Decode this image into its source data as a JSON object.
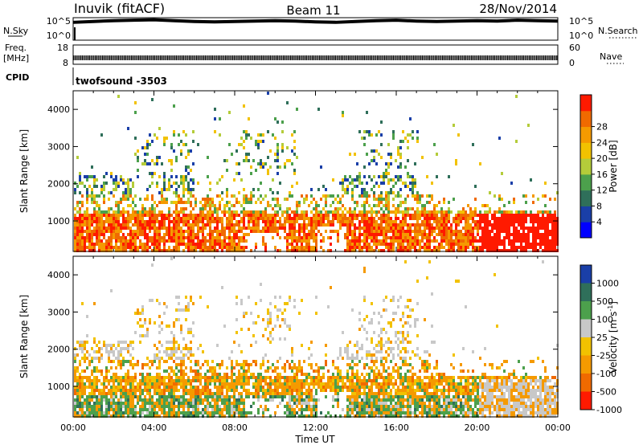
{
  "header": {
    "station": "Inuvik (fitACF)",
    "beam": "Beam 11",
    "date": "28/Nov/2014"
  },
  "chart_data": [
    {
      "type": "line",
      "panel": "noise",
      "left_labels": [
        "N.Sky"
      ],
      "right_labels": [
        "N.Search"
      ],
      "left_ticks": [
        "10^5",
        "10^0"
      ],
      "right_ticks": [
        "10^5",
        "10^0"
      ],
      "description_series": [
        {
          "name": "N.Sky",
          "x_hours": [
            0,
            1,
            2,
            3,
            4,
            5,
            6,
            7,
            8,
            9,
            10,
            11,
            12,
            13,
            14,
            15,
            16,
            17,
            18,
            19,
            20,
            21,
            22,
            23,
            24
          ],
          "values_log10": [
            4.2,
            4.4,
            4.6,
            4.7,
            4.8,
            4.6,
            4.4,
            4.3,
            4.4,
            4.5,
            4.6,
            4.5,
            4.3,
            4.2,
            4.4,
            4.6,
            4.7,
            4.5,
            4.4,
            4.5,
            4.6,
            4.5,
            4.7,
            4.6,
            4.5
          ]
        }
      ]
    },
    {
      "type": "line",
      "panel": "frequency",
      "left_labels": [
        "Freq.",
        "[MHz]"
      ],
      "right_labels": [
        "Nave"
      ],
      "left_ticks": [
        "18",
        "8"
      ],
      "right_ticks": [
        "60",
        "0"
      ],
      "note_value_mhz": 10.5
    },
    {
      "type": "text",
      "panel": "cpid",
      "label": "CPID",
      "value": "twofsound -3503"
    },
    {
      "type": "heatmap",
      "panel": "power",
      "ylabel": "Slant Range [km]",
      "yticks": [
        "1000",
        "2000",
        "3000",
        "4000"
      ],
      "ylim": [
        180,
        4500
      ],
      "colorbar": {
        "label": "Power [dB]",
        "ticks": [
          "4",
          "8",
          "12",
          "16",
          "20",
          "24",
          "28"
        ],
        "colors": [
          "#0000ff",
          "#1a3fa8",
          "#2f6f5a",
          "#4ca04c",
          "#b4cc3a",
          "#f2c200",
          "#f59a00",
          "#f06a00",
          "#ff1a00"
        ]
      }
    },
    {
      "type": "heatmap",
      "panel": "velocity",
      "ylabel": "Slant Range [km]",
      "yticks": [
        "1000",
        "2000",
        "3000",
        "4000"
      ],
      "ylim": [
        180,
        4500
      ],
      "colorbar": {
        "label": "Velocity [m s^-1]",
        "ticks": [
          "1000",
          "500",
          "100",
          "25",
          "-25",
          "-100",
          "-500",
          "-1000"
        ],
        "colors": [
          "#1a3fa8",
          "#2f6f5a",
          "#4ca04c",
          "#c8c8c8",
          "#f2c200",
          "#f59a00",
          "#f06a00",
          "#ff1a00"
        ]
      }
    }
  ],
  "xaxis": {
    "label": "Time UT",
    "ticks": [
      "00:00",
      "04:00",
      "08:00",
      "12:00",
      "16:00",
      "20:00",
      "00:00"
    ],
    "range_hours": [
      0,
      24
    ]
  }
}
